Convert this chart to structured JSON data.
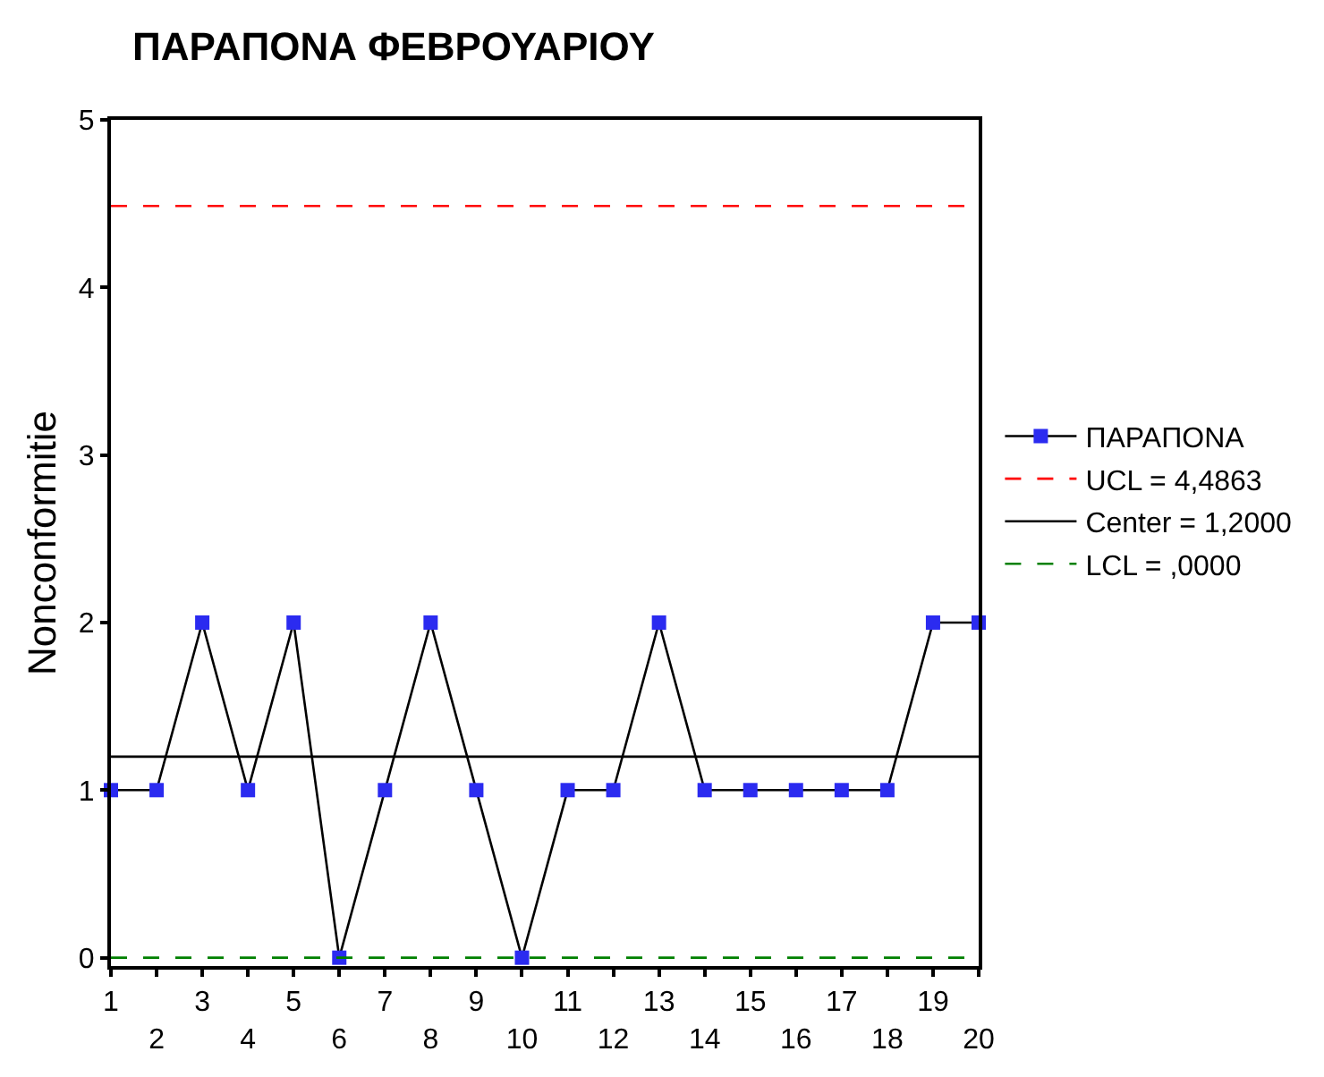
{
  "chart_data": {
    "type": "line",
    "title": "ΠΑΡΑΠΟΝΑ ΦΕΒΡΟΥΑΡΙΟΥ",
    "ylabel": "Nonconformitie",
    "categories": [
      "1",
      "2",
      "3",
      "4",
      "5",
      "6",
      "7",
      "8",
      "9",
      "10",
      "11",
      "12",
      "13",
      "14",
      "15",
      "16",
      "17",
      "18",
      "19",
      "20"
    ],
    "series": [
      {
        "name": "ΠΑΡΑΠΟΝΑ",
        "color": "#2b2bf0",
        "values": [
          1,
          1,
          2,
          1,
          2,
          0,
          1,
          2,
          1,
          0,
          1,
          1,
          2,
          1,
          1,
          1,
          1,
          1,
          2,
          2
        ]
      }
    ],
    "ylim": [
      -0.05,
      5
    ],
    "yticks": [
      0,
      1,
      2,
      3,
      4,
      5
    ],
    "marker": "square",
    "line_style": "solid",
    "grid": false,
    "legend": "right",
    "ref_lines": [
      {
        "axis": "y",
        "value": 4.4863,
        "label": "UCL = 4,4863",
        "color": "#ff0000",
        "line_style": "dashed"
      },
      {
        "axis": "y",
        "value": 1.2,
        "label": "Center = 1,2000",
        "color": "#000000",
        "line_style": "solid"
      },
      {
        "axis": "y",
        "value": 0,
        "label": "LCL = ,0000",
        "color": "#008000",
        "line_style": "dashed"
      }
    ]
  }
}
